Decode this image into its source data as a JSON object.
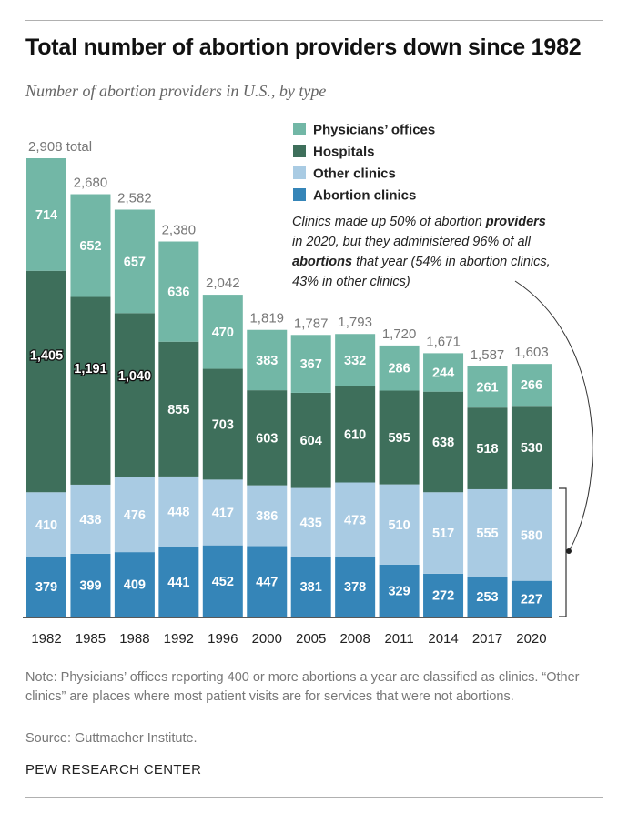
{
  "header": {
    "title": "Total number of abortion providers down since 1982",
    "subtitle": "Number of abortion providers in U.S., by type"
  },
  "chart_data": {
    "type": "bar",
    "stacked": true,
    "categories": [
      "1982",
      "1985",
      "1988",
      "1992",
      "1996",
      "2000",
      "2005",
      "2008",
      "2011",
      "2014",
      "2017",
      "2020"
    ],
    "series": [
      {
        "name": "Abortion clinics",
        "color": "#3585b8",
        "values": [
          379,
          399,
          409,
          441,
          452,
          447,
          381,
          378,
          329,
          272,
          253,
          227
        ]
      },
      {
        "name": "Other clinics",
        "color": "#a9cbe3",
        "values": [
          410,
          438,
          476,
          448,
          417,
          386,
          435,
          473,
          510,
          517,
          555,
          580
        ]
      },
      {
        "name": "Hospitals",
        "color": "#3e6f5b",
        "values": [
          1405,
          1191,
          1040,
          855,
          703,
          603,
          604,
          610,
          595,
          638,
          518,
          530
        ]
      },
      {
        "name": "Physicians’ offices",
        "color": "#72b7a6",
        "values": [
          714,
          652,
          657,
          636,
          470,
          383,
          367,
          332,
          286,
          244,
          261,
          266
        ]
      }
    ],
    "totals": [
      2908,
      2680,
      2582,
      2380,
      2042,
      1819,
      1787,
      1793,
      1720,
      1671,
      1587,
      1603
    ],
    "total_labels": [
      "2,908 total",
      "2,680",
      "2,582",
      "2,380",
      "2,042",
      "1,819",
      "1,787",
      "1,793",
      "1,720",
      "1,671",
      "1,587",
      "1,603"
    ],
    "value_labels": [
      [
        "379",
        "399",
        "409",
        "441",
        "452",
        "447",
        "381",
        "378",
        "329",
        "272",
        "253",
        "227"
      ],
      [
        "410",
        "438",
        "476",
        "448",
        "417",
        "386",
        "435",
        "473",
        "510",
        "517",
        "555",
        "580"
      ],
      [
        "1,405",
        "1,191",
        "1,040",
        "855",
        "703",
        "603",
        "604",
        "610",
        "595",
        "638",
        "518",
        "530"
      ],
      [
        "714",
        "652",
        "657",
        "636",
        "470",
        "383",
        "367",
        "332",
        "286",
        "244",
        "261",
        "266"
      ]
    ],
    "legend": [
      "Physicians’ offices",
      "Hospitals",
      "Other clinics",
      "Abortion clinics"
    ],
    "legend_position": "top-right",
    "annotation": {
      "lines": [
        [
          {
            "t": "Clinics made up 50% of abortion ",
            "b": false
          },
          {
            "t": "providers",
            "b": true
          }
        ],
        [
          {
            "t": "in 2020, but they administered 96% of all",
            "b": false
          }
        ],
        [
          {
            "t": "abortions",
            "b": true
          },
          {
            "t": " that year (54% in abortion clinics,",
            "b": false
          }
        ],
        [
          {
            "t": "43% in other clinics)",
            "b": false
          }
        ]
      ]
    },
    "xlabel": "",
    "ylabel": "",
    "ylim": [
      0,
      2908
    ],
    "grid": false
  },
  "footer": {
    "note": "Note: Physicians’ offices reporting 400 or more abortions a year are classified as clinics. “Other clinics” are places where most patient visits are for services that were not abortions.",
    "source": "Source: Guttmacher Institute.",
    "brand": "PEW RESEARCH CENTER"
  }
}
